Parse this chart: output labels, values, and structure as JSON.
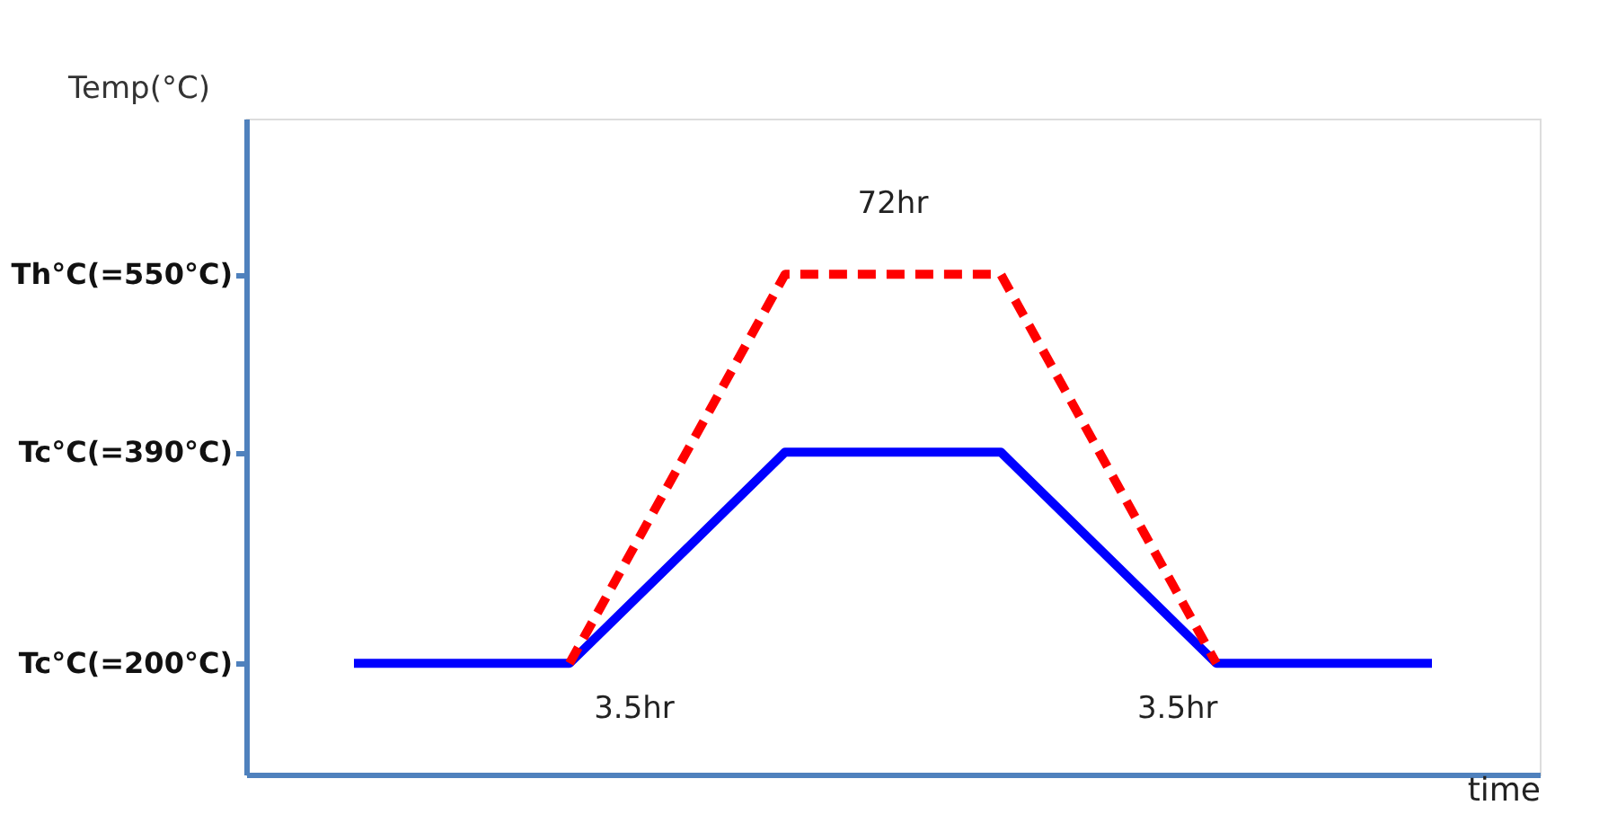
{
  "chart_data": {
    "type": "line",
    "xlabel": "time",
    "ylabel": "Temp(°C)",
    "categories": [
      null,
      null,
      null,
      null,
      null,
      null
    ],
    "series": [
      {
        "color": "#0000ff",
        "line_style": "solid",
        "values": [
          200,
          200,
          390,
          390,
          200,
          200
        ]
      },
      {
        "color": "#ff0000",
        "line_style": "dashed",
        "values": [
          null,
          200,
          550,
          550,
          200,
          null
        ]
      }
    ],
    "ylim": [
      100,
      690
    ],
    "yticks": [
      {
        "value": 200,
        "label": "Tc°C(=200°C)"
      },
      {
        "value": 390,
        "label": "Tc°C(=390°C)"
      },
      {
        "value": 550,
        "label": "Th°C(=550°C)"
      }
    ],
    "tick_labels": "y",
    "grid": false,
    "marker": "none",
    "annotations": [
      "72hr",
      "3.5hr",
      "3.5hr"
    ]
  }
}
